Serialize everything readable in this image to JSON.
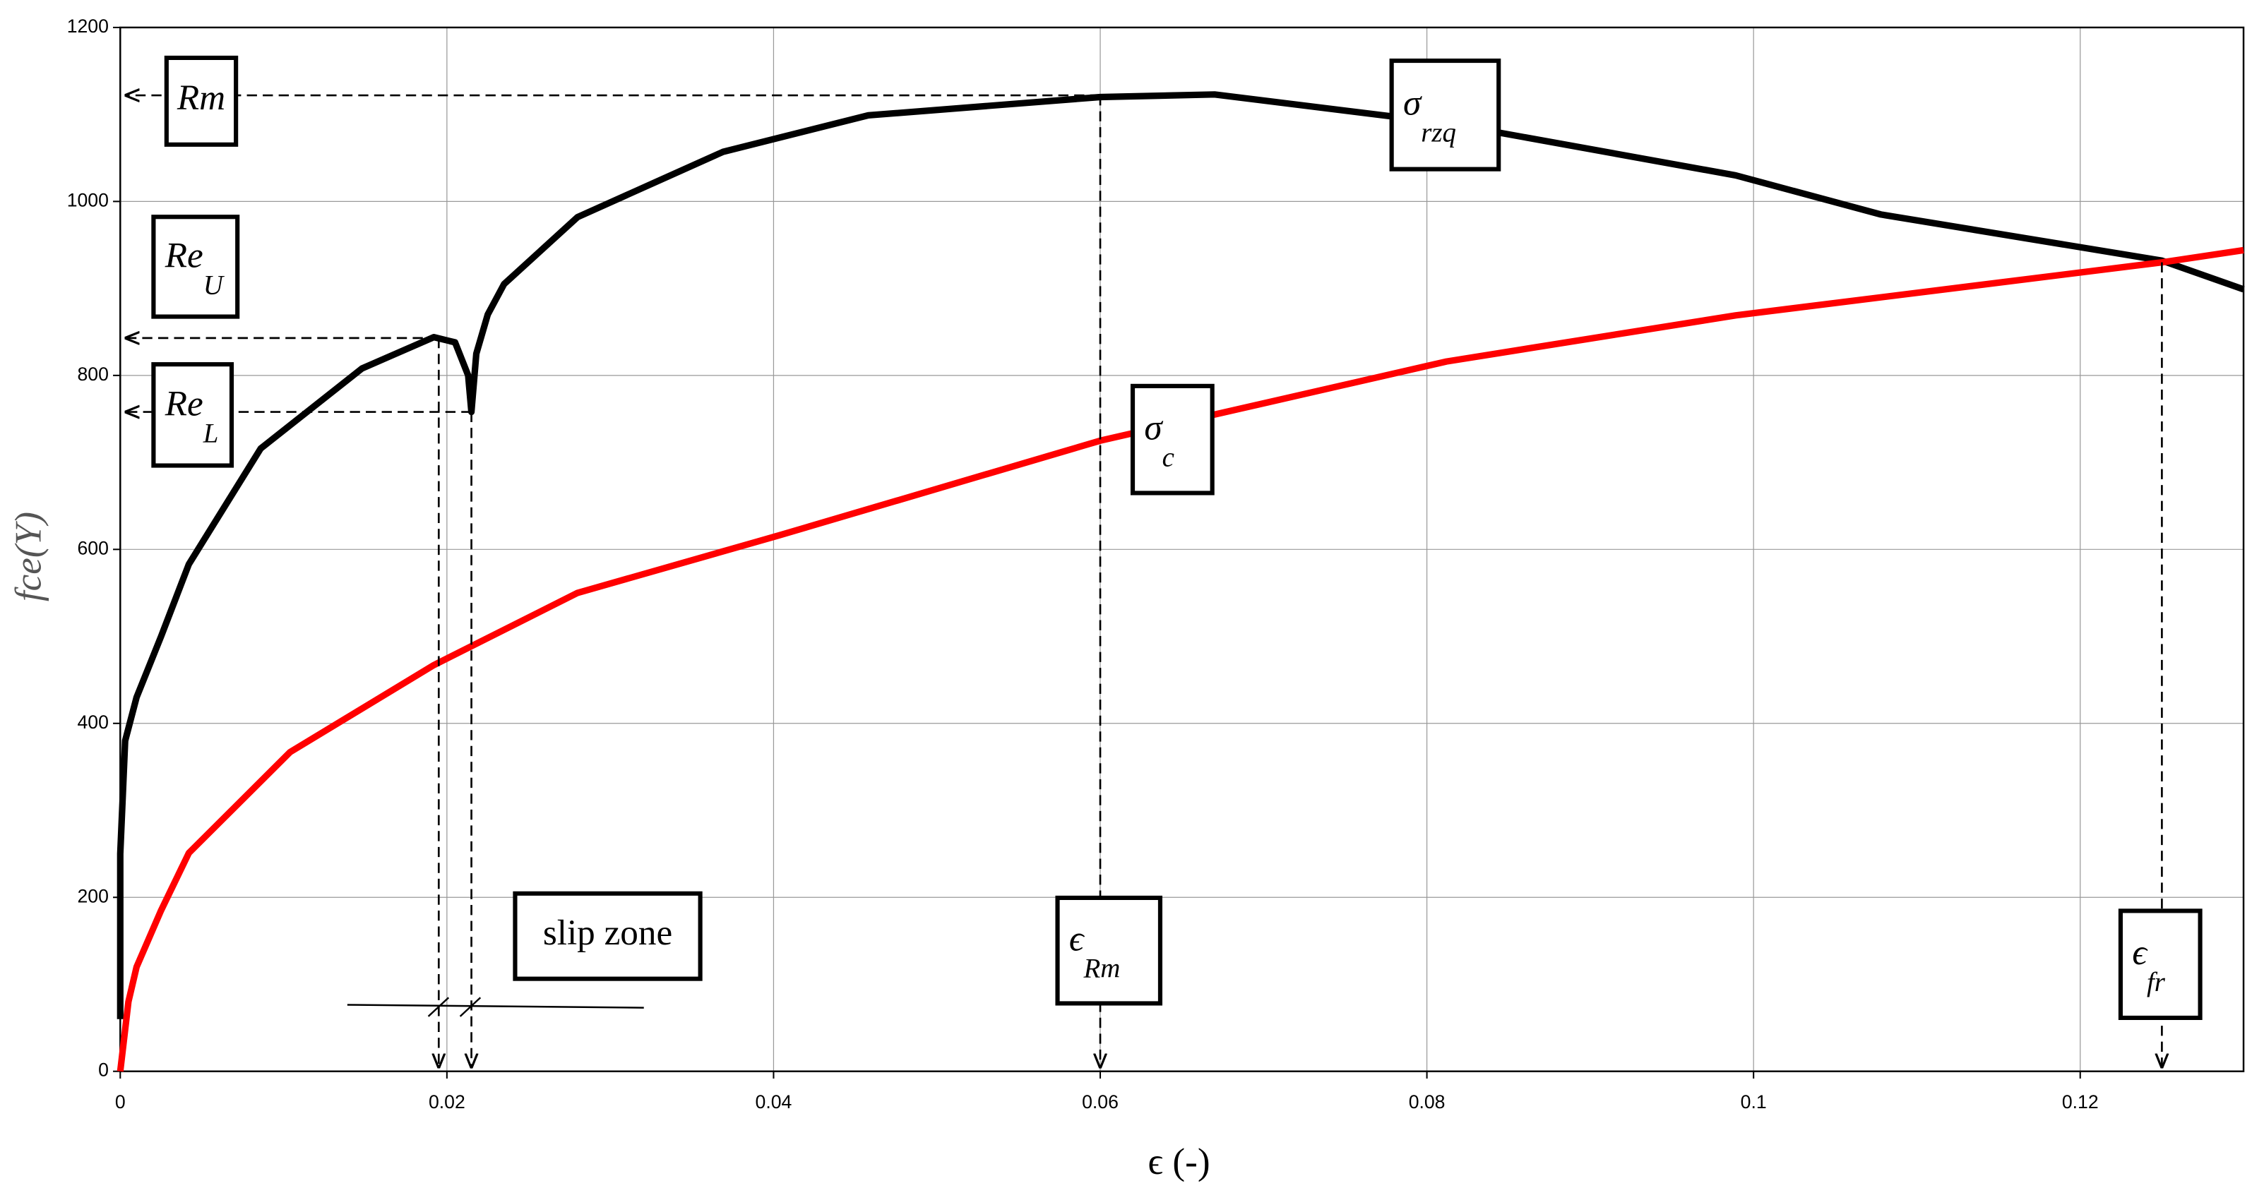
{
  "chart_data": {
    "type": "line",
    "x_label": "ϵ (-)",
    "y_label": "fce(Y)",
    "xlim": [
      0,
      0.13
    ],
    "xticks": [
      0,
      0.02,
      0.04,
      0.06,
      0.08,
      0.1,
      0.12
    ],
    "ylim": [
      0,
      1200
    ],
    "yticks": [
      0,
      200,
      400,
      600,
      800,
      1000,
      1200
    ],
    "grid": true,
    "series": [
      {
        "color": "#000000",
        "x": [
          0,
          0,
          0.0003,
          0.001,
          0.0025,
          0.0042,
          0.0086,
          0.0148,
          0.0192,
          0.0205,
          0.0213,
          0.0215,
          0.0218,
          0.0225,
          0.0235,
          0.028,
          0.0369,
          0.0458,
          0.06,
          0.067,
          0.0812,
          0.0989,
          0.1078,
          0.125,
          0.13
        ],
        "values": [
          60,
          250,
          380,
          430,
          500,
          583,
          716,
          808,
          844,
          838,
          800,
          758,
          825,
          870,
          905,
          982,
          1057,
          1099,
          1120,
          1123,
          1090,
          1030,
          985,
          932,
          899
        ]
      },
      {
        "color": "#ff0000",
        "x": [
          0,
          0.0005,
          0.001,
          0.0025,
          0.0042,
          0.0104,
          0.0192,
          0.028,
          0.0405,
          0.06,
          0.0812,
          0.0989,
          0.125,
          0.13
        ],
        "values": [
          0,
          80,
          120,
          185,
          251,
          367,
          467,
          550,
          617,
          725,
          816,
          869,
          930,
          944
        ]
      }
    ],
    "annotations": [
      {
        "text": "Rm",
        "x": 0.06,
        "y": 1122,
        "arrows": [
          "left"
        ]
      },
      {
        "text": "Re",
        "sub": "U",
        "x": 0.0195,
        "y": 843,
        "arrows": [
          "left",
          "down"
        ]
      },
      {
        "text": "Re",
        "sub": "L",
        "x": 0.0215,
        "y": 758,
        "arrows": [
          "left",
          "down"
        ]
      },
      {
        "text": "σ",
        "sub": "rzq"
      },
      {
        "text": "σ",
        "sub": "c"
      },
      {
        "text": "slip zone"
      },
      {
        "text": "ϵ",
        "sub": "Rm",
        "x": 0.06,
        "y": 1122,
        "arrows": [
          "down"
        ]
      },
      {
        "text": "ϵ",
        "sub": "fr",
        "x": 0.125,
        "y": 930,
        "arrows": [
          "down"
        ]
      }
    ]
  }
}
